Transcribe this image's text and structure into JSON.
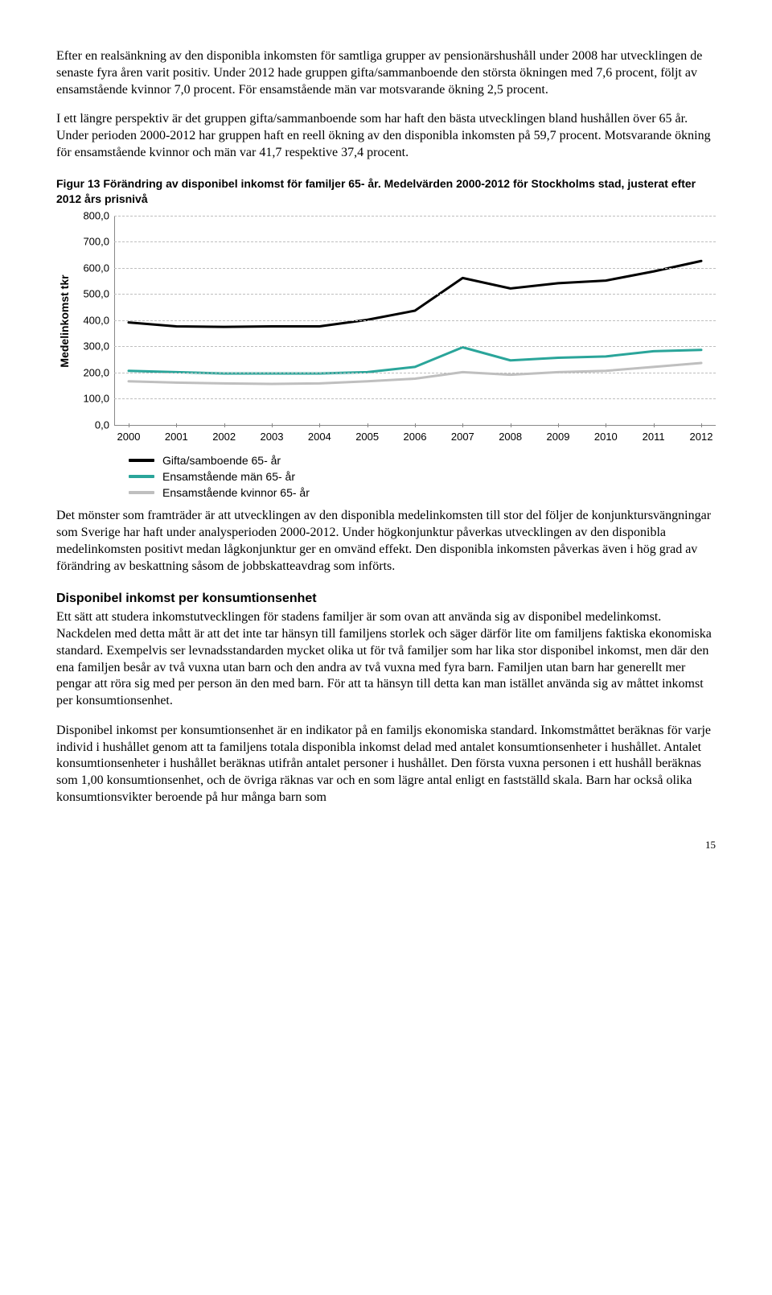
{
  "paragraphs": {
    "p1": "Efter en realsänkning av den disponibla inkomsten för samtliga grupper av pensionärshushåll under 2008 har utvecklingen de senaste fyra åren varit positiv. Under 2012 hade gruppen gifta/sammanboende den största ökningen med 7,6 procent, följt av ensamstående kvinnor 7,0 procent. För ensamstående män var motsvarande ökning 2,5 procent.",
    "p2": "I ett längre perspektiv är det gruppen gifta/sammanboende som har haft den bästa utvecklingen bland hushållen över 65 år. Under perioden 2000-2012 har gruppen haft en reell ökning av den disponibla inkomsten på 59,7 procent. Motsvarande ökning för ensamstående kvinnor och män var 41,7 respektive 37,4 procent.",
    "p3": "Det mönster som framträder är att utvecklingen av den disponibla medelinkomsten till stor del följer de konjunktursvängningar som Sverige har haft under analysperioden 2000-2012. Under högkonjunktur påverkas utvecklingen av den disponibla medelinkomsten positivt medan lågkonjunktur ger en omvänd effekt. Den disponibla inkomsten påverkas även i hög grad av förändring av beskattning såsom de jobbskatteavdrag som införts.",
    "p4": "Ett sätt att studera inkomstutvecklingen för stadens familjer är som ovan att använda sig av disponibel medelinkomst. Nackdelen med detta mått är att det inte tar hänsyn till familjens storlek och säger därför lite om familjens faktiska ekonomiska standard. Exempelvis ser levnadsstandarden mycket olika ut för två familjer som har lika stor disponibel inkomst, men där den ena familjen besår av två vuxna utan barn och den andra av två vuxna med fyra barn. Familjen utan barn har generellt mer pengar att röra sig med per person än den med barn. För att ta hänsyn till detta kan man istället använda sig av måttet inkomst per konsumtionsenhet.",
    "p5": "Disponibel inkomst per konsumtionsenhet är en indikator på en familjs ekonomiska standard. Inkomstmåttet beräknas för varje individ i hushållet genom att ta familjens totala disponibla inkomst delad med antalet konsumtionsenheter i hushållet. Antalet konsumtionsenheter i hushållet beräknas utifrån antalet personer i hushållet. Den första vuxna personen i ett hushåll beräknas som 1,00 konsumtionsenhet, och de övriga räknas var och en som lägre antal enligt en fastställd skala. Barn har också olika konsumtionsvikter beroende på hur många barn som"
  },
  "figure_caption": "Figur 13 Förändring av disponibel inkomst för familjer 65- år. Medelvärden 2000-2012 för Stockholms stad, justerat efter 2012 års prisnivå",
  "subhead": "Disponibel inkomst per konsumtionsenhet",
  "page_number": "15",
  "chart": {
    "type": "line",
    "y_axis_label": "Medelinkomst tkr",
    "ylim": [
      0,
      800
    ],
    "ytick_step": 100,
    "yticks": [
      "0,0",
      "100,0",
      "200,0",
      "300,0",
      "400,0",
      "500,0",
      "600,0",
      "700,0",
      "800,0"
    ],
    "categories": [
      "2000",
      "2001",
      "2002",
      "2003",
      "2004",
      "2005",
      "2006",
      "2007",
      "2008",
      "2009",
      "2010",
      "2011",
      "2012"
    ],
    "grid_color": "#bfbfbf",
    "background_color": "#ffffff",
    "line_width": 3,
    "series": [
      {
        "name": "Gifta/samboende 65- år",
        "color": "#000000",
        "values": [
          395,
          380,
          378,
          380,
          380,
          405,
          440,
          565,
          525,
          545,
          555,
          590,
          630
        ]
      },
      {
        "name": "Ensamstående män 65- år",
        "color": "#2aa59a",
        "values": [
          210,
          205,
          200,
          200,
          200,
          205,
          225,
          300,
          250,
          260,
          265,
          285,
          290
        ]
      },
      {
        "name": "Ensamstående kvinnor 65- år",
        "color": "#bfbfbf",
        "values": [
          170,
          165,
          162,
          160,
          162,
          170,
          180,
          205,
          195,
          205,
          210,
          225,
          240
        ]
      }
    ]
  }
}
